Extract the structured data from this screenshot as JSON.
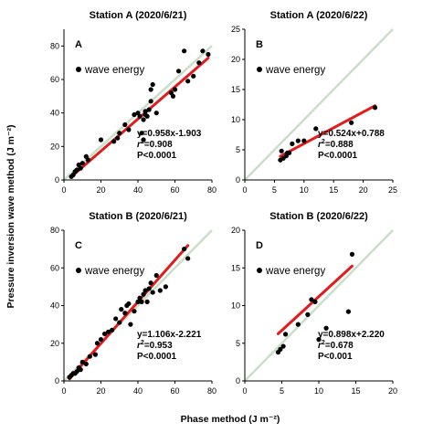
{
  "figure": {
    "ylabel": "Pressure inversion wave method (J m⁻²)",
    "xlabel": "Phase method (J m⁻²)",
    "colors": {
      "points": "#000000",
      "fit": "#e41a1c",
      "identity": "#c9dfc9",
      "axis": "#000000"
    }
  },
  "chart_data": [
    {
      "type": "scatter",
      "title": "Station A (2020/6/21)",
      "panel": "A",
      "legend": "wave energy",
      "legend_position": "top-left",
      "xlim": [
        0,
        80
      ],
      "ylim": [
        0,
        90
      ],
      "xticks": [
        0,
        20,
        40,
        60,
        80
      ],
      "yticks": [
        0,
        20,
        40,
        60,
        80
      ],
      "fit": {
        "slope": 0.958,
        "intercept": -1.903
      },
      "stats": [
        "y=0.958x-1.903",
        "r2=0.908",
        "P<0.0001"
      ],
      "x": [
        4,
        5,
        6,
        7,
        8,
        9,
        10,
        12,
        13,
        20,
        27,
        29,
        30,
        33,
        35,
        38,
        40,
        41,
        42,
        43,
        43,
        44,
        44,
        45,
        46,
        47,
        47,
        48,
        50,
        58,
        59,
        60,
        62,
        65,
        67,
        70,
        73,
        75,
        78
      ],
      "y": [
        2,
        3,
        5,
        6,
        9,
        7,
        10,
        14,
        12,
        24,
        23,
        25,
        28,
        33,
        30,
        39,
        40,
        38,
        28,
        36,
        24,
        39,
        41,
        38,
        42,
        47,
        54,
        57,
        40,
        52,
        50,
        54,
        65,
        77,
        59,
        62,
        70,
        77,
        75
      ]
    },
    {
      "type": "scatter",
      "title": "Station A (2020/6/22)",
      "panel": "B",
      "legend": "wave energy",
      "legend_position": "top-left",
      "xlim": [
        0,
        25
      ],
      "ylim": [
        0,
        25
      ],
      "xticks": [
        0,
        5,
        10,
        15,
        20,
        25
      ],
      "yticks": [
        0,
        5,
        10,
        15,
        20,
        25
      ],
      "fit": {
        "slope": 0.524,
        "intercept": 0.788
      },
      "stats": [
        "y=0.524x+0.788",
        "r2=0.888",
        "P<0.0001"
      ],
      "x": [
        6,
        6.2,
        6.5,
        7,
        7.2,
        7.5,
        8,
        9,
        10,
        12,
        18,
        22
      ],
      "y": [
        3.3,
        4.8,
        3.6,
        4.0,
        4.5,
        4.5,
        6.0,
        6.5,
        6.5,
        8.5,
        9.5,
        12.0
      ]
    },
    {
      "type": "scatter",
      "title": "Station B (2020/6/21)",
      "panel": "C",
      "legend": "wave energy",
      "legend_position": "top-left",
      "xlim": [
        0,
        80
      ],
      "ylim": [
        0,
        80
      ],
      "xticks": [
        0,
        20,
        40,
        60,
        80
      ],
      "yticks": [
        0,
        20,
        40,
        60,
        80
      ],
      "fit": {
        "slope": 1.106,
        "intercept": -2.221
      },
      "stats": [
        "y=1.106x-2.221",
        "r2=0.953",
        "P<0.0001"
      ],
      "x": [
        3,
        4,
        5,
        6,
        7,
        8,
        9,
        10,
        12,
        14,
        17,
        18,
        20,
        22,
        24,
        26,
        28,
        30,
        31,
        33,
        34,
        35,
        36,
        38,
        40,
        41,
        42,
        43,
        44,
        45,
        46,
        47,
        48,
        50,
        52,
        55,
        65,
        67
      ],
      "y": [
        2,
        3,
        4,
        4,
        5,
        7,
        6,
        10,
        9,
        13,
        14,
        20,
        22,
        25,
        26,
        27,
        33,
        31,
        38,
        36,
        40,
        41,
        30,
        37,
        42,
        44,
        42,
        46,
        48,
        42,
        49,
        52,
        47,
        56,
        48,
        50,
        70,
        65
      ]
    },
    {
      "type": "scatter",
      "title": "Station B (2020/6/22)",
      "panel": "D",
      "legend": "wave energy",
      "legend_position": "top-left",
      "xlim": [
        0,
        20
      ],
      "ylim": [
        0,
        20
      ],
      "xticks": [
        0,
        5,
        10,
        15,
        20
      ],
      "yticks": [
        0,
        5,
        10,
        15,
        20
      ],
      "fit": {
        "slope": 0.898,
        "intercept": 2.22
      },
      "stats": [
        "y=0.898x+2.220",
        "r2=0.678",
        "P<0.001"
      ],
      "x": [
        4.5,
        4.8,
        5.2,
        5.5,
        7.2,
        8.5,
        9.0,
        9.5,
        10.0,
        11.0,
        14.0,
        14.5
      ],
      "y": [
        3.8,
        4.2,
        4.6,
        6.2,
        7.5,
        8.8,
        10.8,
        10.5,
        5.5,
        7.0,
        9.2,
        16.8
      ]
    }
  ]
}
